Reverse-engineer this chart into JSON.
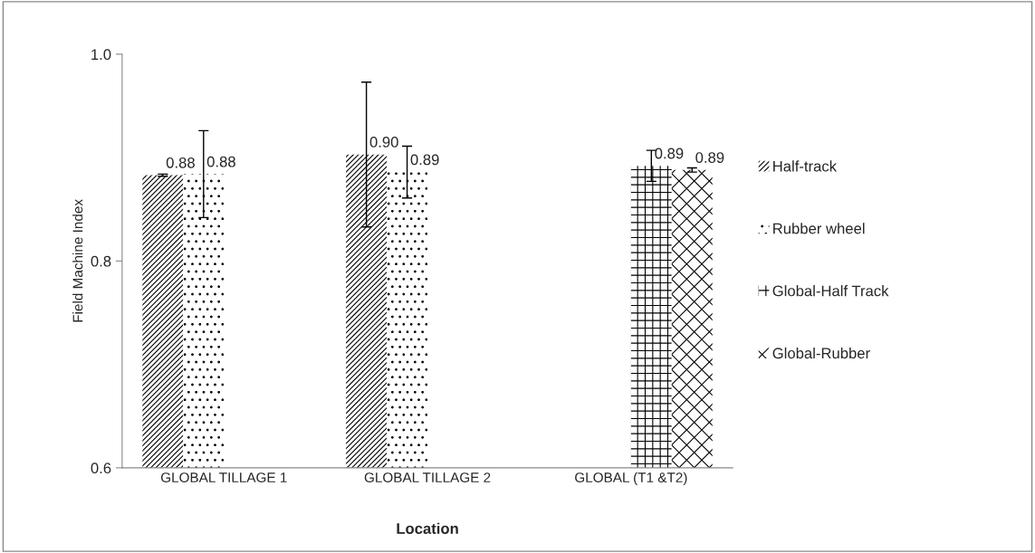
{
  "chart_data": {
    "type": "bar",
    "xlabel": "Location",
    "ylabel": "Field Machine Index",
    "categories": [
      "GLOBAL TILLAGE 1",
      "GLOBAL TILLAGE 2",
      "GLOBAL (T1 &T2)"
    ],
    "series": [
      {
        "name": "Half-track",
        "color": "#000000",
        "values": [
          0.883,
          0.903,
          null
        ],
        "errors": [
          0.001,
          0.07,
          null
        ],
        "value_labels": [
          "0.88",
          "0.90",
          null
        ]
      },
      {
        "name": "Rubber wheel",
        "color": "#000000",
        "values": [
          0.884,
          0.886,
          null
        ],
        "errors": [
          0.042,
          0.025,
          null
        ],
        "value_labels": [
          "0.88",
          "0.89",
          null
        ]
      },
      {
        "name": "Global-Half Track",
        "color": "#000000",
        "values": [
          null,
          null,
          0.892
        ],
        "errors": [
          null,
          null,
          0.015
        ],
        "value_labels": [
          null,
          null,
          "0.89"
        ]
      },
      {
        "name": "Global-Rubber",
        "color": "#000000",
        "values": [
          null,
          null,
          0.888
        ],
        "errors": [
          null,
          null,
          0.002
        ],
        "value_labels": [
          null,
          null,
          "0.89"
        ]
      }
    ],
    "ylim": [
      0.6,
      1.0
    ],
    "yticks": [
      {
        "value": 0.6,
        "label": "0.6"
      },
      {
        "value": 0.8,
        "label": "0.8"
      },
      {
        "value": 1.0,
        "label": "1.0"
      }
    ],
    "grid": false,
    "legend": "right"
  }
}
